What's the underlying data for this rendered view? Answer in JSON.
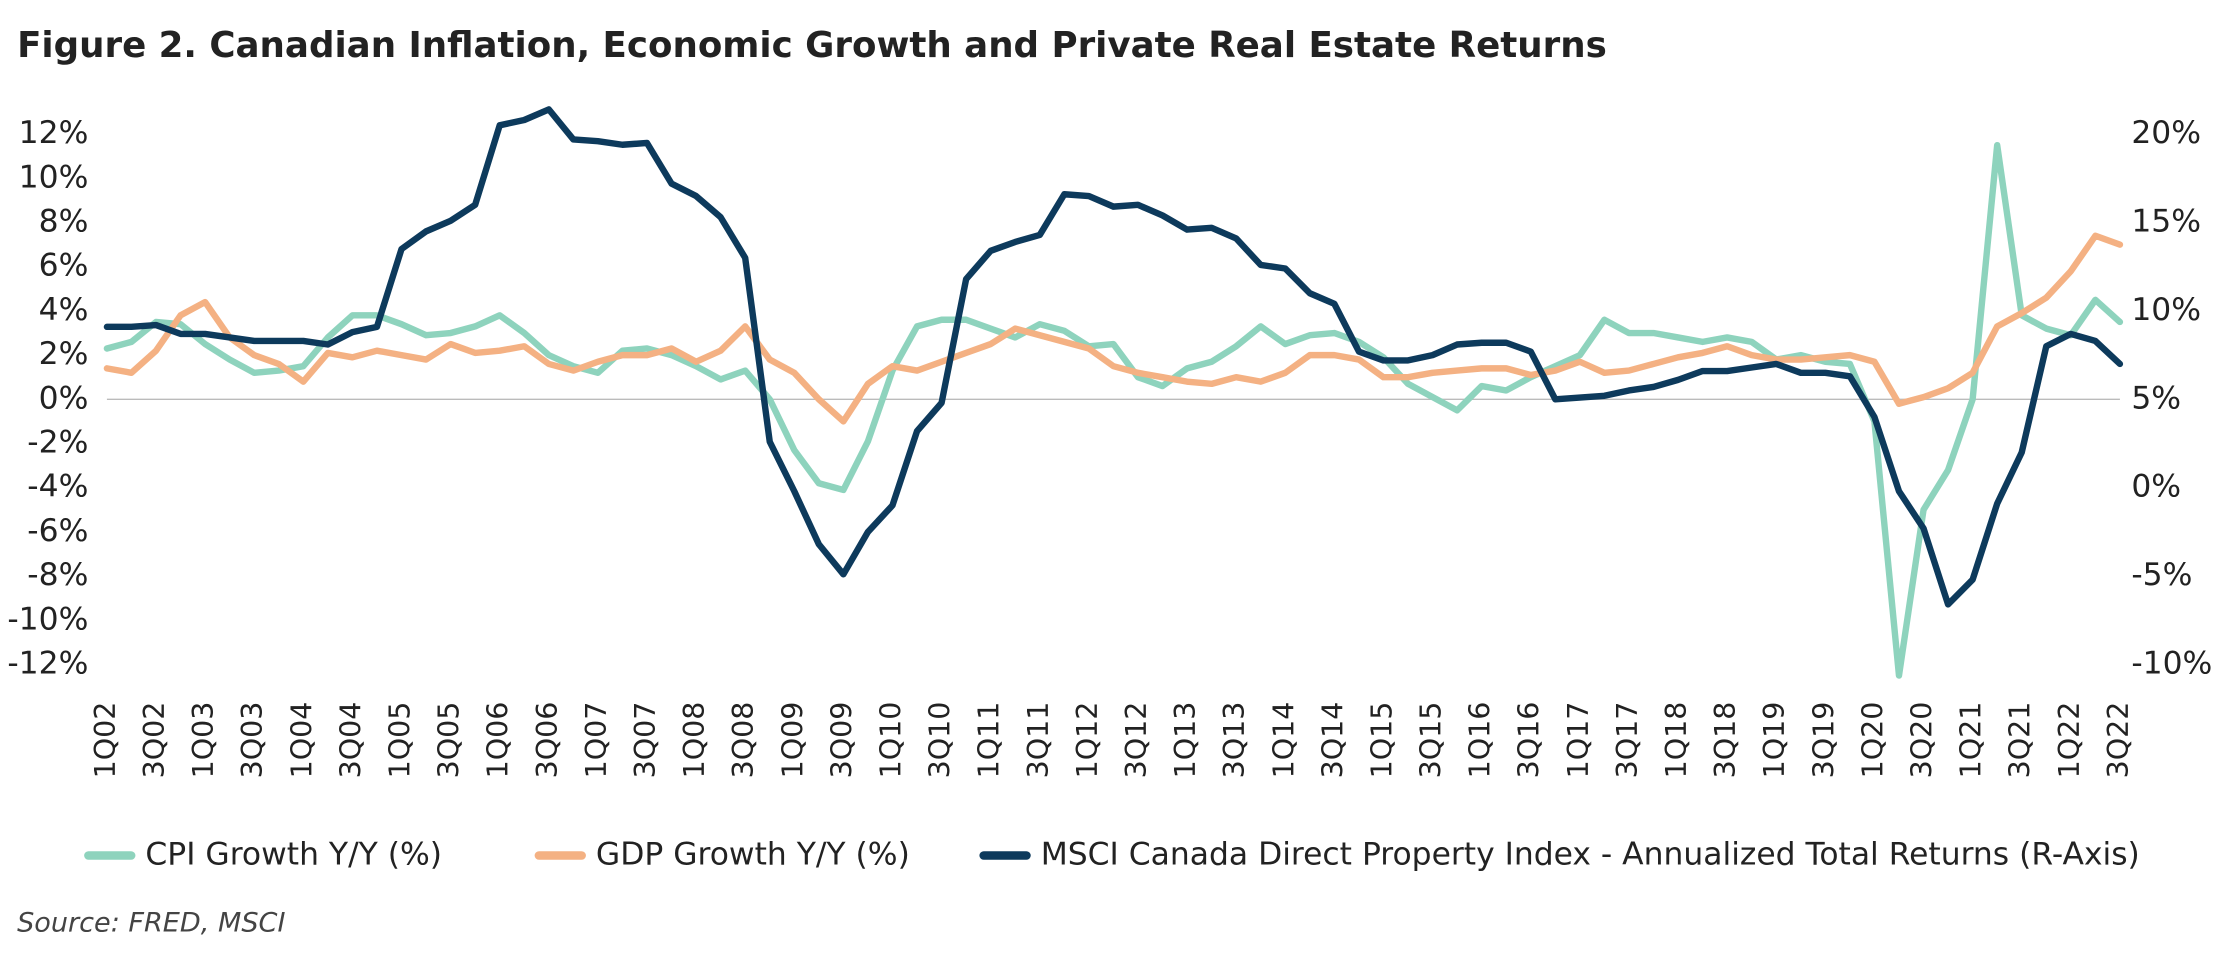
{
  "chart_data": {
    "type": "line",
    "title": "Figure 2. Canadian Inflation, Economic Growth and Private Real Estate Returns",
    "source": "Source: FRED, MSCI",
    "categories": [
      "1Q02",
      null,
      "3Q02",
      null,
      "1Q03",
      null,
      "3Q03",
      null,
      "1Q04",
      null,
      "3Q04",
      null,
      "1Q05",
      null,
      "3Q05",
      null,
      "1Q06",
      null,
      "3Q06",
      null,
      "1Q07",
      null,
      "3Q07",
      null,
      "1Q08",
      null,
      "3Q08",
      null,
      "1Q09",
      null,
      "3Q09",
      null,
      "1Q10",
      null,
      "3Q10",
      null,
      "1Q11",
      null,
      "3Q11",
      null,
      "1Q12",
      null,
      "3Q12",
      null,
      "1Q13",
      null,
      "3Q13",
      null,
      "1Q14",
      null,
      "3Q14",
      null,
      "1Q15",
      null,
      "3Q15",
      null,
      "1Q16",
      null,
      "3Q16",
      null,
      "1Q17",
      null,
      "3Q17",
      null,
      "1Q18",
      null,
      "3Q18",
      null,
      "1Q19",
      null,
      "3Q19",
      null,
      "1Q20",
      null,
      "3Q20",
      null,
      "1Q21",
      null,
      "3Q21",
      null,
      "1Q22",
      null,
      "3Q22"
    ],
    "series": [
      {
        "name": "CPI Growth Y/Y (%)",
        "color": "#8ed3bd",
        "axis": "y",
        "values": [
          2.3,
          2.6,
          3.5,
          3.4,
          2.5,
          1.8,
          1.2,
          1.3,
          1.5,
          2.8,
          3.8,
          3.8,
          3.4,
          2.9,
          3.0,
          3.3,
          3.8,
          3.0,
          2.0,
          1.5,
          1.2,
          2.2,
          2.3,
          2.0,
          1.5,
          0.9,
          1.3,
          0.0,
          -2.3,
          -3.8,
          -4.1,
          -1.9,
          1.3,
          3.3,
          3.6,
          3.6,
          3.2,
          2.8,
          3.4,
          3.1,
          2.4,
          2.5,
          1.0,
          0.6,
          1.4,
          1.7,
          2.4,
          3.3,
          2.5,
          2.9,
          3.0,
          2.6,
          1.9,
          0.7,
          0.1,
          -0.5,
          0.6,
          0.4,
          1.0,
          1.5,
          2.0,
          3.6,
          3.0,
          3.0,
          2.8,
          2.6,
          2.8,
          2.6,
          1.8,
          2.0,
          1.7,
          1.6,
          -1.0,
          -12.5,
          -5.0,
          -3.2,
          0.0,
          11.5,
          3.8,
          3.2,
          2.9,
          4.5,
          3.5
        ]
      },
      {
        "name": "GDP Growth Y/Y (%)",
        "color": "#f4b183",
        "axis": "y",
        "values": [
          1.4,
          1.2,
          2.2,
          3.8,
          4.4,
          2.8,
          2.0,
          1.6,
          0.8,
          2.1,
          1.9,
          2.2,
          2.0,
          1.8,
          2.5,
          2.1,
          2.2,
          2.4,
          1.6,
          1.3,
          1.7,
          2.0,
          2.0,
          2.3,
          1.7,
          2.2,
          3.3,
          1.8,
          1.2,
          0.0,
          -1.0,
          0.7,
          1.5,
          1.3,
          1.7,
          2.1,
          2.5,
          3.2,
          2.9,
          2.6,
          2.3,
          1.5,
          1.2,
          1.0,
          0.8,
          0.7,
          1.0,
          0.8,
          1.2,
          2.0,
          2.0,
          1.8,
          1.0,
          1.0,
          1.2,
          1.3,
          1.4,
          1.4,
          1.1,
          1.3,
          1.7,
          1.2,
          1.3,
          1.6,
          1.9,
          2.1,
          2.4,
          2.0,
          1.8,
          1.8,
          1.9,
          2.0,
          1.7,
          -0.2,
          0.1,
          0.5,
          1.2,
          3.3,
          3.9,
          4.6,
          5.8,
          7.4,
          7.0
        ]
      },
      {
        "name": "MSCI Canada Direct Property Index - Annualized Total Returns (R-Axis)",
        "color": "#0d3a5c",
        "axis": "y2",
        "values": [
          9.1,
          9.1,
          9.2,
          8.7,
          8.7,
          8.5,
          8.3,
          8.3,
          8.3,
          8.1,
          8.8,
          9.1,
          13.5,
          14.5,
          15.1,
          16.0,
          20.5,
          20.8,
          21.4,
          19.7,
          19.6,
          19.4,
          19.5,
          17.2,
          16.5,
          15.3,
          13.0,
          2.6,
          -0.2,
          -3.2,
          -4.9,
          -2.5,
          -1.0,
          3.2,
          4.8,
          11.8,
          13.4,
          13.9,
          14.3,
          16.6,
          16.5,
          15.9,
          16.0,
          15.4,
          14.6,
          14.7,
          14.1,
          12.6,
          12.4,
          11.0,
          10.4,
          7.7,
          7.2,
          7.2,
          7.5,
          8.1,
          8.2,
          8.2,
          7.7,
          5.0,
          5.1,
          5.2,
          5.5,
          5.7,
          6.1,
          6.6,
          6.6,
          6.8,
          7.0,
          6.5,
          6.5,
          6.3,
          4.0,
          -0.2,
          -2.3,
          -6.6,
          -5.2,
          -0.9,
          2.0,
          8.0,
          8.7,
          8.3,
          7.0
        ]
      }
    ],
    "ylim": [
      -12,
      12
    ],
    "yticks": [
      {
        "value": -12,
        "label": "-12%"
      },
      {
        "value": -10,
        "label": "-10%"
      },
      {
        "value": -8,
        "label": "-8%"
      },
      {
        "value": -6,
        "label": "-6%"
      },
      {
        "value": -4,
        "label": "-4%"
      },
      {
        "value": -2,
        "label": "-2%"
      },
      {
        "value": 0,
        "label": "0%"
      },
      {
        "value": 2,
        "label": "2%"
      },
      {
        "value": 4,
        "label": "4%"
      },
      {
        "value": 6,
        "label": "6%"
      },
      {
        "value": 8,
        "label": "8%"
      },
      {
        "value": 10,
        "label": "10%"
      },
      {
        "value": 12,
        "label": "12%"
      }
    ],
    "y2lim": [
      -10,
      20
    ],
    "y2ticks": [
      {
        "value": -10,
        "label": "-10%"
      },
      {
        "value": -5,
        "label": "-5%"
      },
      {
        "value": 0,
        "label": "0%"
      },
      {
        "value": 5,
        "label": "5%"
      },
      {
        "value": 10,
        "label": "10%"
      },
      {
        "value": 15,
        "label": "15%"
      },
      {
        "value": 20,
        "label": "20%"
      }
    ],
    "legend": "bottom"
  }
}
